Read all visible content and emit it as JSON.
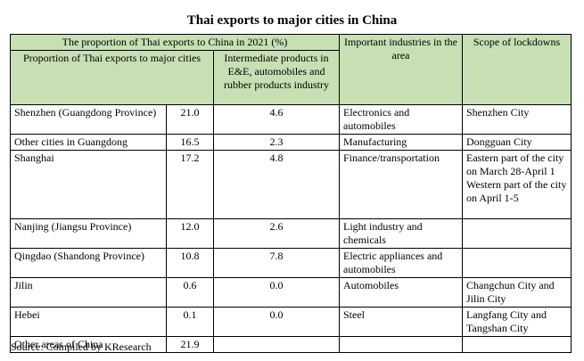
{
  "title": "Thai exports to major cities in China",
  "header": {
    "proportion_group": "The proportion of Thai exports to China in 2021 (%)",
    "proportion_major": "Proportion of Thai exports to major cities",
    "intermediate": "Intermediate products in E&E, automobiles and rubber products industry",
    "industries": "Important industries in the area",
    "lockdowns": "Scope of lockdowns"
  },
  "rows": [
    {
      "city": "Shenzhen (Guangdong Province)",
      "proportion": "21.0",
      "intermediate": "4.6",
      "industry": "Electronics and automobiles",
      "lockdown": "Shenzhen City"
    },
    {
      "city": "Other cities in Guangdong",
      "proportion": "16.5",
      "intermediate": "2.3",
      "industry": "Manufacturing",
      "lockdown": "Dongguan City"
    },
    {
      "city": "Shanghai",
      "proportion": "17.2",
      "intermediate": "4.8",
      "industry": "Finance/transportation",
      "lockdown": "Eastern part of the city on March 28-April 1",
      "lockdown2": "Western part of the city on April 1-5"
    },
    {
      "city": "Nanjing (Jiangsu Province)",
      "proportion": "12.0",
      "intermediate": "2.6",
      "industry": "Light industry and chemicals",
      "lockdown": ""
    },
    {
      "city": "Qingdao (Shandong Province)",
      "proportion": "10.8",
      "intermediate": "7.8",
      "industry": "Electric appliances and automobiles",
      "lockdown": ""
    },
    {
      "city": "Jilin",
      "proportion": "0.6",
      "intermediate": "0.0",
      "industry": "Automobiles",
      "lockdown": "Changchun City and Jilin City"
    },
    {
      "city": "Hebei",
      "proportion": "0.1",
      "intermediate": "0.0",
      "industry": "Steel",
      "lockdown": "Langfang City and Tangshan City"
    },
    {
      "city": "Other areas of China",
      "proportion": "21.9",
      "intermediate": "",
      "industry": "",
      "lockdown": ""
    }
  ],
  "source": "Source: Compiled by KResearch"
}
